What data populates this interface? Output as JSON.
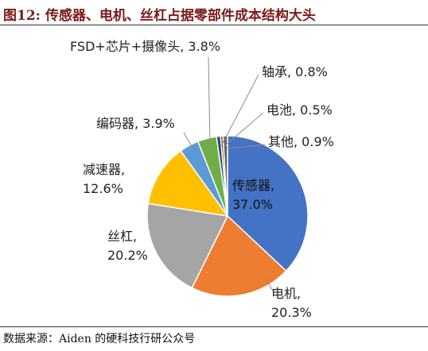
{
  "header": {
    "title": "图12:  传感器、电机、丝杠占据零部件成本结构大头"
  },
  "footer": {
    "source": "数据来源：Aiden 的硬科技行研公众号"
  },
  "chart_data": {
    "type": "pie",
    "title": "图12:  传感器、电机、丝杠占据零部件成本结构大头",
    "slices": [
      {
        "name": "传感器",
        "value": 37.0,
        "label": "37.0%",
        "color": "#4472C4"
      },
      {
        "name": "电机",
        "value": 20.3,
        "label": "20.3%",
        "color": "#ED7D31"
      },
      {
        "name": "丝杠",
        "value": 20.2,
        "label": "20.2%",
        "color": "#A5A5A5"
      },
      {
        "name": "减速器",
        "value": 12.6,
        "label": "12.6%",
        "color": "#FFC000"
      },
      {
        "name": "编码器",
        "value": 3.9,
        "label": "3.9%",
        "color": "#5B9BD5"
      },
      {
        "name": "FSD+芯片+摄像头",
        "value": 3.8,
        "label": "3.8%",
        "color": "#70AD47"
      },
      {
        "name": "轴承",
        "value": 0.8,
        "label": "0.8%",
        "color": "#264478"
      },
      {
        "name": "电池",
        "value": 0.5,
        "label": "0.5%",
        "color": "#9E480E"
      },
      {
        "name": "其他",
        "value": 0.9,
        "label": "0.9%",
        "color": "#636363"
      }
    ],
    "start_angle_deg": 0,
    "direction": "clockwise"
  }
}
